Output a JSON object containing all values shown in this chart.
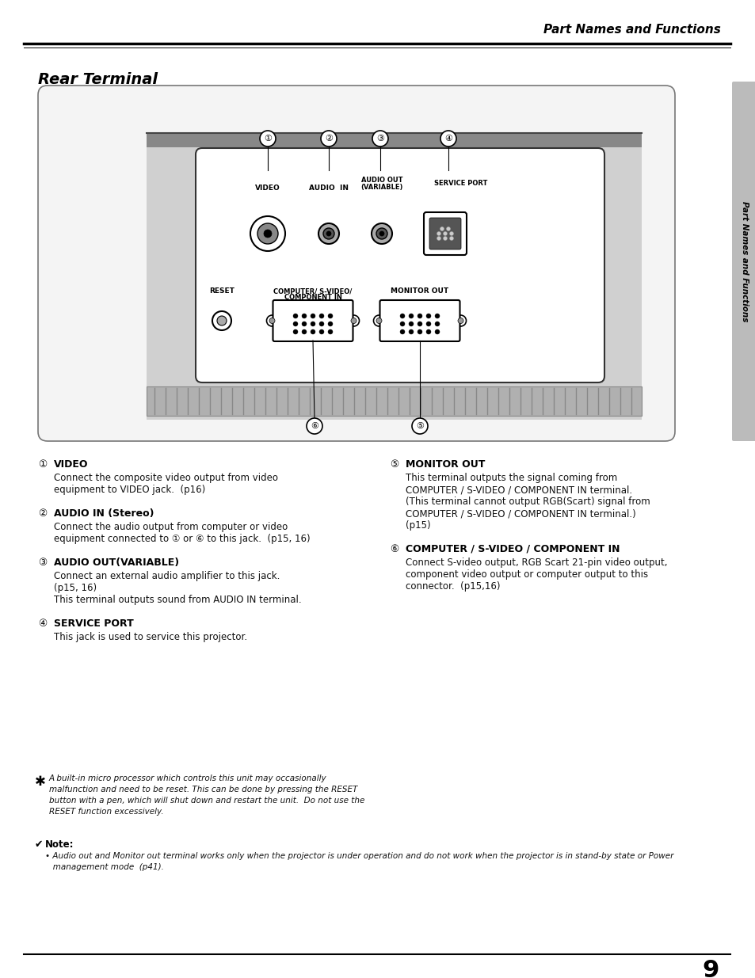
{
  "page_title": "Part Names and Functions",
  "section_title": "Rear Terminal",
  "sidebar_text": "Part Names and Functions",
  "bg_color": "#ffffff",
  "sidebar_color": "#bbbbbb",
  "page_number": "9",
  "items_left": [
    {
      "num": "①",
      "heading": "VIDEO",
      "body": "Connect the composite video output from video\nequipment to VIDEO jack.  (p16)"
    },
    {
      "num": "②",
      "heading": "AUDIO IN (Stereo)",
      "body": "Connect the audio output from computer or video\nequipment connected to ① or ⑥ to this jack.  (p15, 16)"
    },
    {
      "num": "③",
      "heading": "AUDIO OUT(VARIABLE)",
      "body": "Connect an external audio amplifier to this jack.\n(p15, 16)\nThis terminal outputs sound from AUDIO IN terminal."
    },
    {
      "num": "④",
      "heading": "SERVICE PORT",
      "body": "This jack is used to service this projector."
    }
  ],
  "items_right": [
    {
      "num": "⑤",
      "heading": "MONITOR OUT",
      "body": "This terminal outputs the signal coming from\nCOMPUTER / S-VIDEO / COMPONENT IN terminal.\n(This terminal cannot output RGB(Scart) signal from\nCOMPUTER / S-VIDEO / COMPONENT IN terminal.)\n(p15)"
    },
    {
      "num": "⑥",
      "heading": "COMPUTER / S-VIDEO / COMPONENT IN",
      "body": "Connect S-video output, RGB Scart 21-pin video output,\ncomponent video output or computer output to this\nconnector.  (p15,16)"
    }
  ],
  "note_star": "A built-in micro processor which controls this unit may occasionally\nmalfunction and need to be reset. This can be done by pressing the RESET\nbutton with a pen, which will shut down and restart the unit.  Do not use the\nRESET function excessively.",
  "note_label": "Note:",
  "note_bullet": "Audio out and Monitor out terminal works only when the projector is under operation and do not work when the projector is in stand-by state or Power\nmanagement mode  (p41)."
}
